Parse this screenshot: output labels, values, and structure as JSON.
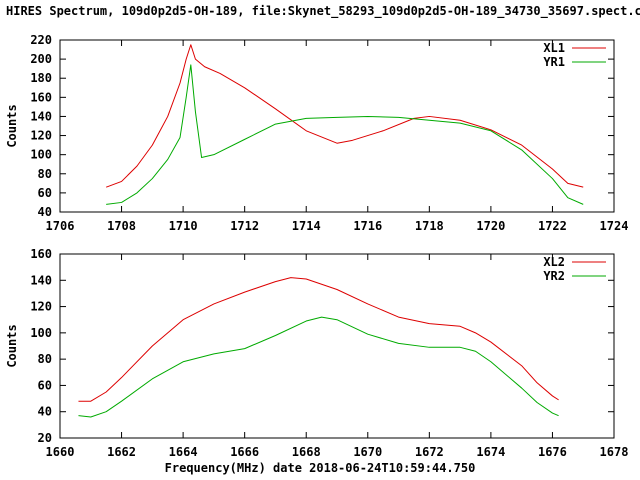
{
  "title": "HIRES Spectrum, 109d0p2d5-OH-189, file:Skynet_58293_109d0p2d5-OH-189_34730_35697.spect.cyb",
  "xlabel": "Frequency(MHz) date 2018-06-24T10:59:44.750",
  "colors": {
    "red": "#dd0000",
    "green": "#00aa00",
    "axis": "#000000"
  },
  "chart_data": [
    {
      "type": "line",
      "ylabel": "Counts",
      "xlim": [
        1706,
        1724
      ],
      "ylim": [
        40,
        220
      ],
      "xticks": [
        1706,
        1708,
        1710,
        1712,
        1714,
        1716,
        1718,
        1720,
        1722,
        1724
      ],
      "yticks": [
        40,
        60,
        80,
        100,
        120,
        140,
        160,
        180,
        200,
        220
      ],
      "grid": false,
      "legend_position": "top-right",
      "series": [
        {
          "name": "XL1",
          "color": "#dd0000",
          "points": [
            [
              1707.5,
              66
            ],
            [
              1708.0,
              72
            ],
            [
              1708.5,
              88
            ],
            [
              1709.0,
              110
            ],
            [
              1709.5,
              140
            ],
            [
              1709.9,
              175
            ],
            [
              1710.1,
              200
            ],
            [
              1710.25,
              215
            ],
            [
              1710.4,
              200
            ],
            [
              1710.7,
              192
            ],
            [
              1711.2,
              185
            ],
            [
              1712.0,
              170
            ],
            [
              1713.0,
              148
            ],
            [
              1714.0,
              125
            ],
            [
              1715.0,
              112
            ],
            [
              1715.5,
              115
            ],
            [
              1716.5,
              125
            ],
            [
              1717.5,
              138
            ],
            [
              1718.0,
              140
            ],
            [
              1719.0,
              136
            ],
            [
              1720.0,
              126
            ],
            [
              1721.0,
              110
            ],
            [
              1722.0,
              85
            ],
            [
              1722.5,
              70
            ],
            [
              1723.0,
              66
            ]
          ]
        },
        {
          "name": "YR1",
          "color": "#00aa00",
          "points": [
            [
              1707.5,
              48
            ],
            [
              1708.0,
              50
            ],
            [
              1708.5,
              60
            ],
            [
              1709.0,
              75
            ],
            [
              1709.5,
              95
            ],
            [
              1709.9,
              118
            ],
            [
              1710.1,
              160
            ],
            [
              1710.25,
              194
            ],
            [
              1710.4,
              145
            ],
            [
              1710.6,
              97
            ],
            [
              1711.0,
              100
            ],
            [
              1712.0,
              116
            ],
            [
              1713.0,
              132
            ],
            [
              1714.0,
              138
            ],
            [
              1715.0,
              139
            ],
            [
              1716.0,
              140
            ],
            [
              1717.0,
              139
            ],
            [
              1718.0,
              136
            ],
            [
              1719.0,
              133
            ],
            [
              1720.0,
              125
            ],
            [
              1721.0,
              105
            ],
            [
              1722.0,
              75
            ],
            [
              1722.5,
              55
            ],
            [
              1723.0,
              48
            ]
          ]
        }
      ]
    },
    {
      "type": "line",
      "ylabel": "Counts",
      "xlim": [
        1660,
        1678
      ],
      "ylim": [
        20,
        160
      ],
      "xticks": [
        1660,
        1662,
        1664,
        1666,
        1668,
        1670,
        1672,
        1674,
        1676,
        1678
      ],
      "yticks": [
        20,
        40,
        60,
        80,
        100,
        120,
        140,
        160
      ],
      "grid": false,
      "legend_position": "top-right",
      "series": [
        {
          "name": "XL2",
          "color": "#dd0000",
          "points": [
            [
              1660.6,
              48
            ],
            [
              1661.0,
              48
            ],
            [
              1661.5,
              55
            ],
            [
              1662.0,
              66
            ],
            [
              1663.0,
              90
            ],
            [
              1664.0,
              110
            ],
            [
              1665.0,
              122
            ],
            [
              1666.0,
              131
            ],
            [
              1667.0,
              139
            ],
            [
              1667.5,
              142
            ],
            [
              1668.0,
              141
            ],
            [
              1669.0,
              133
            ],
            [
              1670.0,
              122
            ],
            [
              1671.0,
              112
            ],
            [
              1672.0,
              107
            ],
            [
              1673.0,
              105
            ],
            [
              1673.5,
              100
            ],
            [
              1674.0,
              93
            ],
            [
              1675.0,
              75
            ],
            [
              1675.5,
              62
            ],
            [
              1676.0,
              52
            ],
            [
              1676.2,
              49
            ]
          ]
        },
        {
          "name": "YR2",
          "color": "#00aa00",
          "points": [
            [
              1660.6,
              37
            ],
            [
              1661.0,
              36
            ],
            [
              1661.5,
              40
            ],
            [
              1662.0,
              48
            ],
            [
              1663.0,
              65
            ],
            [
              1664.0,
              78
            ],
            [
              1665.0,
              84
            ],
            [
              1666.0,
              88
            ],
            [
              1667.0,
              98
            ],
            [
              1668.0,
              109
            ],
            [
              1668.5,
              112
            ],
            [
              1669.0,
              110
            ],
            [
              1670.0,
              99
            ],
            [
              1671.0,
              92
            ],
            [
              1672.0,
              89
            ],
            [
              1673.0,
              89
            ],
            [
              1673.5,
              86
            ],
            [
              1674.0,
              78
            ],
            [
              1675.0,
              58
            ],
            [
              1675.5,
              47
            ],
            [
              1676.0,
              39
            ],
            [
              1676.2,
              37
            ]
          ]
        }
      ]
    }
  ]
}
